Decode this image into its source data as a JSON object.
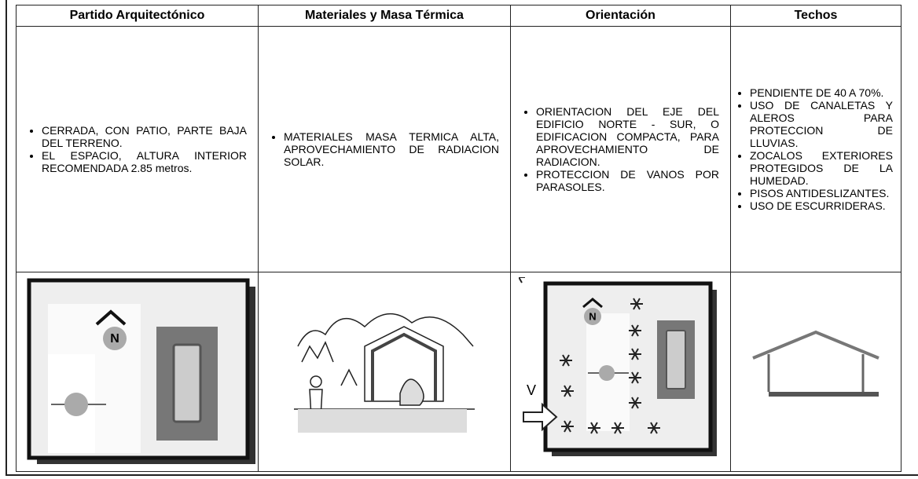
{
  "table": {
    "headers": [
      "Partido Arquitectónico",
      "Materiales y Masa Térmica",
      "Orientación",
      "Techos"
    ],
    "rows": [
      [
        [
          "CERRADA, CON PATIO, PARTE BAJA DEL TERRENO.",
          "EL ESPACIO, ALTURA INTERIOR RECOMENDADA 2.85 metros."
        ],
        [
          "MATERIALES MASA TERMICA ALTA, APROVECHAMIENTO DE RADIACION SOLAR."
        ],
        [
          "ORIENTACION DEL EJE DEL EDIFICIO NORTE - SUR, O EDIFICACION COMPACTA, PARA APROVECHAMIENTO DE RADIACION.",
          "PROTECCION DE VANOS POR PARASOLES."
        ],
        [
          "PENDIENTE DE 40 A 70%.",
          "USO DE CANALETAS Y ALEROS PARA PROTECCION DE LLUVIAS.",
          "ZOCALOS EXTERIORES PROTEGIDOS DE LA HUMEDAD.",
          "PISOS ANTIDESLIZANTES.",
          "USO DE ESCURRIDERAS."
        ]
      ]
    ]
  },
  "images": [
    {
      "north": "N"
    },
    {},
    {
      "north": "N",
      "wind": "V"
    },
    {}
  ]
}
